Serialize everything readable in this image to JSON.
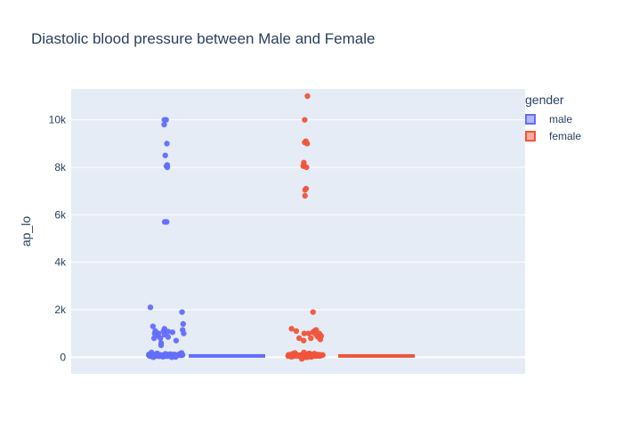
{
  "title": "Diastolic blood pressure between Male and Female",
  "chart_data": {
    "type": "box",
    "title": "Diastolic blood pressure between Male and Female",
    "xlabel": "",
    "ylabel": "ap_lo",
    "ylim": [
      -700,
      11300
    ],
    "yticks": [
      0,
      2000,
      4000,
      6000,
      8000,
      10000
    ],
    "ytick_labels": [
      "0",
      "2k",
      "4k",
      "6k",
      "8k",
      "10k"
    ],
    "grid": true,
    "legend": {
      "title": "gender",
      "placement": "top-right"
    },
    "series": [
      {
        "name": "male",
        "color": "#636efa",
        "box": {
          "q1": 70,
          "median": 80,
          "q3": 90,
          "lowerfence": 40,
          "upperfence": 120
        },
        "outliers": [
          10000,
          10000,
          9800,
          9000,
          8500,
          8100,
          8050,
          8000,
          5700,
          5700,
          2100,
          1900,
          1400,
          1300,
          1200,
          1150,
          1100,
          1100,
          1080,
          1050,
          1000,
          1000,
          1000,
          950,
          900,
          850,
          800,
          800,
          700,
          600,
          500,
          200,
          180,
          160,
          150,
          140,
          130,
          125,
          20,
          10,
          0,
          0
        ]
      },
      {
        "name": "female",
        "color": "#ef553b",
        "box": {
          "q1": 70,
          "median": 80,
          "q3": 90,
          "lowerfence": 40,
          "upperfence": 120
        },
        "outliers": [
          11000,
          10000,
          9100,
          9050,
          9000,
          8200,
          8100,
          8050,
          8000,
          7100,
          7050,
          6800,
          1900,
          1200,
          1150,
          1100,
          1100,
          1050,
          1000,
          1000,
          1000,
          950,
          900,
          850,
          800,
          800,
          750,
          700,
          200,
          180,
          160,
          150,
          140,
          130,
          125,
          20,
          10,
          0,
          0,
          -70
        ]
      }
    ]
  }
}
